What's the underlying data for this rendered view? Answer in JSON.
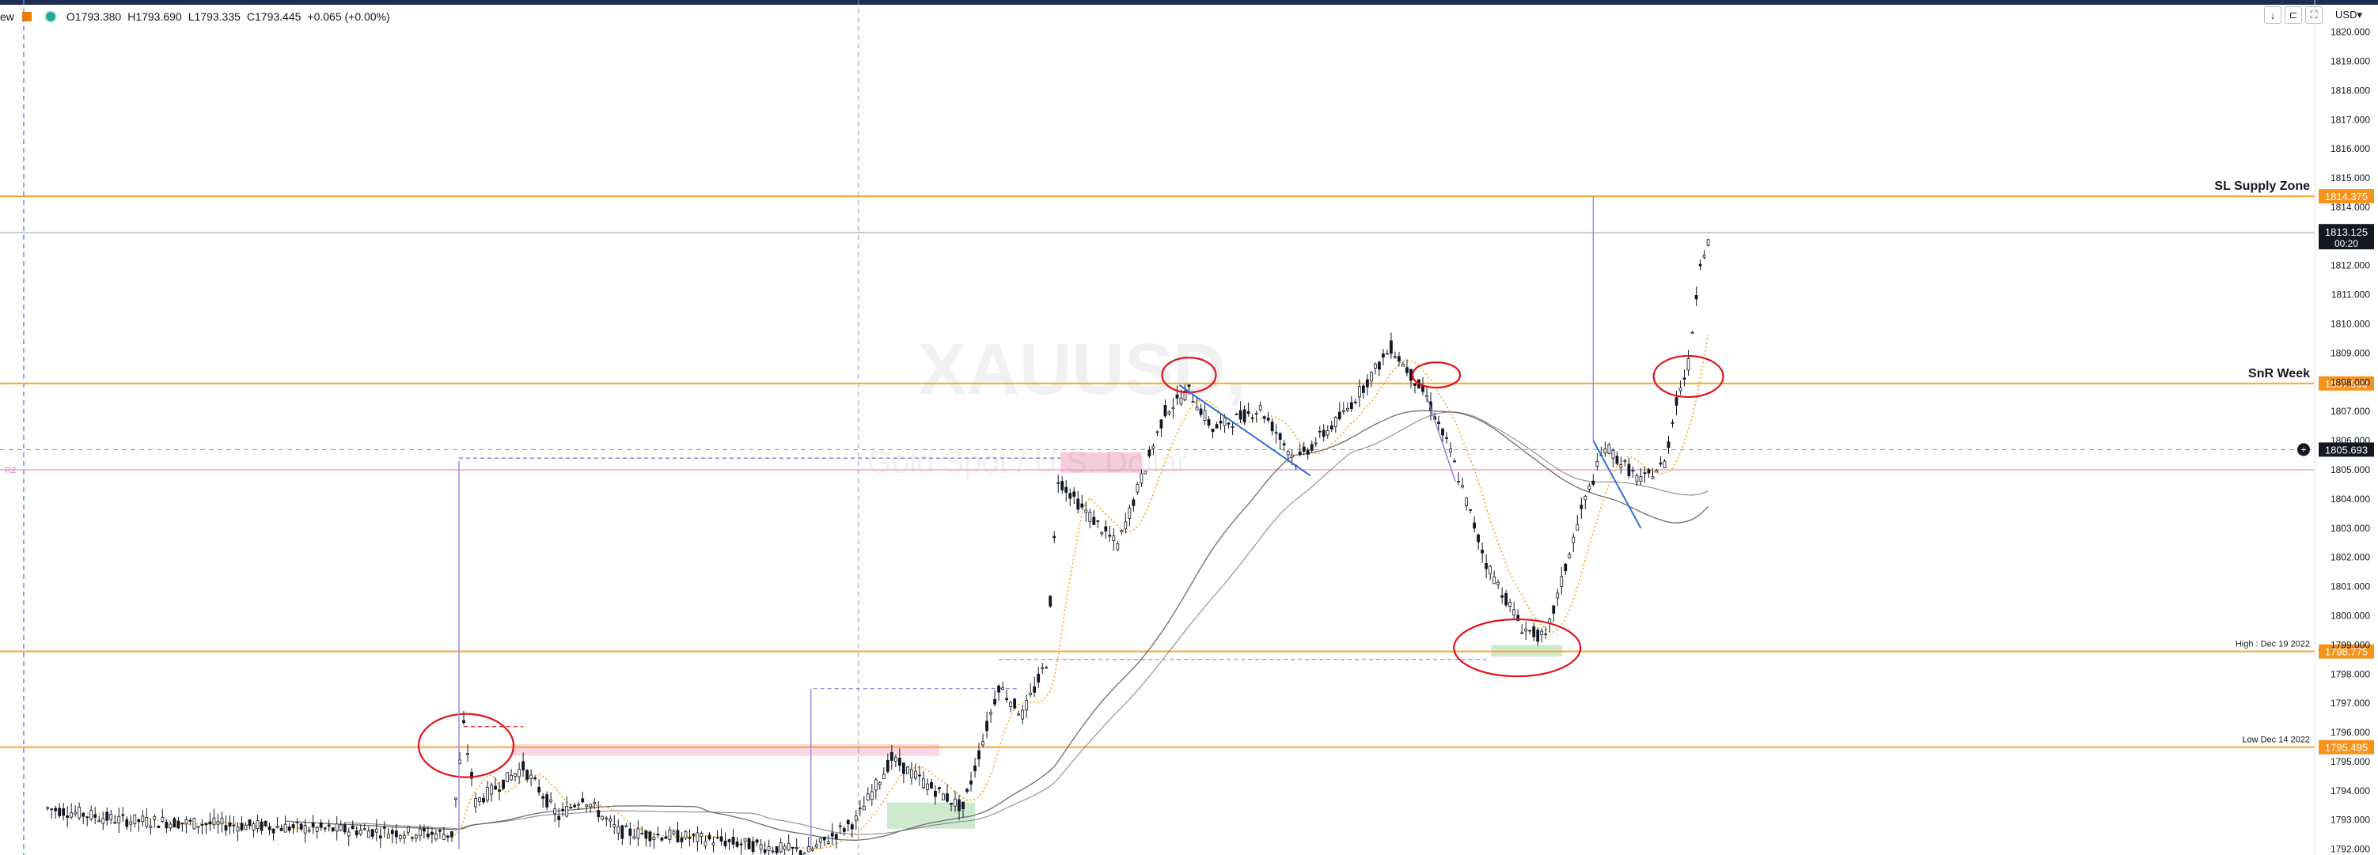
{
  "header": {
    "app_fragment": "ew",
    "ohlc": {
      "open": "O1793.380",
      "high": "H1793.690",
      "low": "L1793.335",
      "close": "C1793.445",
      "change": "+0.065 (+0.00%)"
    },
    "currency": "USD",
    "currency_caret": "▾",
    "tools": {
      "down": "↓",
      "collapse": "⊏",
      "fullscreen": "⛶"
    }
  },
  "colors": {
    "up_candle": "#131722",
    "down_candle": "#131722",
    "level_line": "#f7a531",
    "price_tag": "#f7931a",
    "annotation_red": "#e0121c",
    "trend_blue": "#2f6fd6",
    "ma_gray": "#6d6d6d",
    "ma_orange": "#f5a623",
    "supply_zone": "#f7c5d6",
    "demand_zone": "#c9e8c9",
    "measure_purple": "#9b8fd9",
    "current_price_tag": "#131722"
  },
  "chart_data": {
    "type": "candlestick",
    "symbol_watermark": "XAUUSD,",
    "description_watermark": "Gold Spot / U.S. Dollar",
    "ylim": [
      1791.8,
      1821.1
    ],
    "y_ticks": [
      "1820.000",
      "1819.000",
      "1818.000",
      "1817.000",
      "1816.000",
      "1815.000",
      "1814.000",
      "1813.000",
      "1812.000",
      "1811.000",
      "1810.000",
      "1809.000",
      "1808.000",
      "1807.000",
      "1806.000",
      "1805.000",
      "1804.000",
      "1803.000",
      "1802.000",
      "1801.000",
      "1800.000",
      "1799.000",
      "1798.000",
      "1797.000",
      "1796.000",
      "1795.000",
      "1794.000",
      "1793.000",
      "1792.000"
    ],
    "current_price": {
      "value": 1813.125,
      "label": "1813.125",
      "countdown": "00:20"
    },
    "crosshair_price": {
      "value": 1805.693,
      "label": "1805.693"
    },
    "levels": [
      {
        "value": 1814.375,
        "label": "SL Supply Zone",
        "tag": "1814.375"
      },
      {
        "value": 1807.96,
        "label": "SnR Week",
        "tag": "1807.960"
      },
      {
        "value": 1798.775,
        "label": "High : Dec 19 2022",
        "tag": "1798.775"
      },
      {
        "value": 1795.495,
        "label": "Low Dec 14 2022",
        "tag": "1795.495"
      }
    ],
    "pivot_label": "R2",
    "path": [
      [
        0.02,
        1793.4
      ],
      [
        0.05,
        1793.0
      ],
      [
        0.19,
        1792.5
      ],
      [
        0.195,
        1796.2
      ],
      [
        0.2,
        1793.6
      ],
      [
        0.22,
        1794.8
      ],
      [
        0.235,
        1793.1
      ],
      [
        0.245,
        1793.8
      ],
      [
        0.26,
        1792.6
      ],
      [
        0.29,
        1792.4
      ],
      [
        0.34,
        1791.9
      ],
      [
        0.36,
        1793.0
      ],
      [
        0.375,
        1795.1
      ],
      [
        0.39,
        1794.2
      ],
      [
        0.405,
        1793.4
      ],
      [
        0.42,
        1797.6
      ],
      [
        0.43,
        1796.6
      ],
      [
        0.44,
        1798.4
      ],
      [
        0.445,
        1804.7
      ],
      [
        0.455,
        1803.7
      ],
      [
        0.47,
        1802.4
      ],
      [
        0.49,
        1807.0
      ],
      [
        0.5,
        1807.7
      ],
      [
        0.51,
        1806.4
      ],
      [
        0.53,
        1807.1
      ],
      [
        0.545,
        1805.3
      ],
      [
        0.565,
        1806.9
      ],
      [
        0.585,
        1809.2
      ],
      [
        0.6,
        1807.5
      ],
      [
        0.61,
        1805.6
      ],
      [
        0.625,
        1801.8
      ],
      [
        0.64,
        1799.6
      ],
      [
        0.65,
        1799.2
      ],
      [
        0.665,
        1803.6
      ],
      [
        0.675,
        1805.8
      ],
      [
        0.69,
        1804.6
      ],
      [
        0.7,
        1805.2
      ],
      [
        0.705,
        1807.4
      ],
      [
        0.71,
        1808.6
      ],
      [
        0.715,
        1812.2
      ],
      [
        0.72,
        1813.1
      ]
    ]
  }
}
